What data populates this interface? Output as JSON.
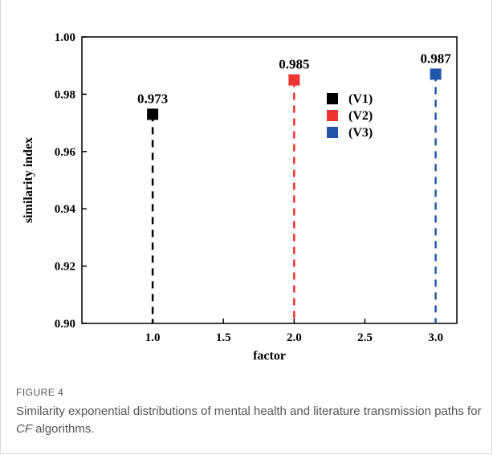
{
  "chart_data": {
    "type": "scatter",
    "xlabel": "factor",
    "ylabel": "similarity index",
    "xlim": [
      0.5,
      3.15
    ],
    "ylim": [
      0.9,
      1.0
    ],
    "xticks": [
      "1.0",
      "1.5",
      "2.0",
      "2.5",
      "3.0"
    ],
    "xtick_values": [
      1.0,
      1.5,
      2.0,
      2.5,
      3.0
    ],
    "yticks": [
      "0.90",
      "0.92",
      "0.94",
      "0.96",
      "0.98",
      "1.00"
    ],
    "ytick_values": [
      0.9,
      0.92,
      0.94,
      0.96,
      0.98,
      1.0
    ],
    "grid": false,
    "legend_position": "top-right",
    "series": [
      {
        "name": "(V1)",
        "x": 1.0,
        "y": 0.973,
        "label": "0.973",
        "color": "#000000"
      },
      {
        "name": "(V2)",
        "x": 2.0,
        "y": 0.985,
        "label": "0.985",
        "color": "#ee3333"
      },
      {
        "name": "(V3)",
        "x": 3.0,
        "y": 0.987,
        "label": "0.987",
        "color": "#2255aa"
      }
    ]
  },
  "caption": {
    "figure_label": "FIGURE 4",
    "text_before": "Similarity exponential distributions of mental health and literature transmission paths for ",
    "text_italic": "CF",
    "text_after": " algorithms."
  }
}
